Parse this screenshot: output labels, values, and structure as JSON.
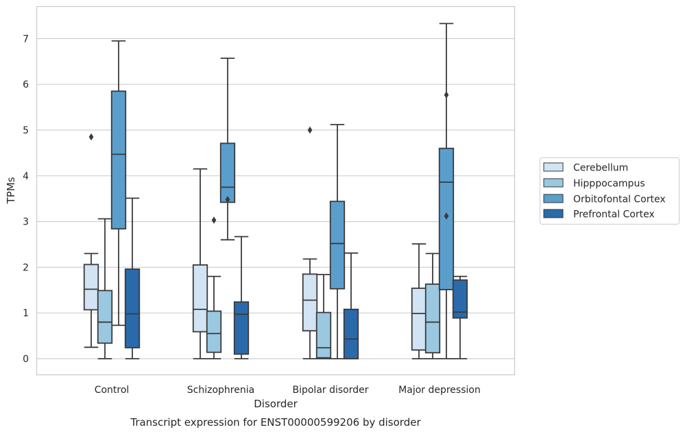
{
  "chart_data": {
    "type": "box",
    "title": "Transcript expression for ENST00000599206 by disorder",
    "xlabel": "Disorder",
    "ylabel": "TPMs",
    "categories": [
      "Control",
      "Schizophrenia",
      "Bipolar disorder",
      "Major depression"
    ],
    "yticks": [
      "0",
      "1",
      "2",
      "3",
      "4",
      "5",
      "6",
      "7"
    ],
    "ylim": [
      -0.35,
      7.7
    ],
    "grid": "horizontal",
    "legend_position": "right",
    "series": [
      {
        "name": "Cerebellum",
        "color": "#d2e3f3",
        "boxes": [
          {
            "min": 0.25,
            "q1": 1.07,
            "median": 1.52,
            "q3": 2.06,
            "max": 2.3,
            "outliers": [
              4.85
            ]
          },
          {
            "min": 0.0,
            "q1": 0.59,
            "median": 1.08,
            "q3": 2.05,
            "max": 4.15,
            "outliers": []
          },
          {
            "min": 0.0,
            "q1": 0.61,
            "median": 1.28,
            "q3": 1.85,
            "max": 2.18,
            "outliers": [
              5.0
            ]
          },
          {
            "min": 0.0,
            "q1": 0.19,
            "median": 0.99,
            "q3": 1.54,
            "max": 2.51,
            "outliers": []
          }
        ]
      },
      {
        "name": "Hipppocampus",
        "color": "#9ac8e0",
        "boxes": [
          {
            "min": 0.0,
            "q1": 0.34,
            "median": 0.8,
            "q3": 1.49,
            "max": 3.06,
            "outliers": []
          },
          {
            "min": 0.0,
            "q1": 0.14,
            "median": 0.55,
            "q3": 1.04,
            "max": 1.8,
            "outliers": [
              3.03
            ]
          },
          {
            "min": 0.0,
            "q1": 0.02,
            "median": 0.24,
            "q3": 1.01,
            "max": 1.84,
            "outliers": []
          },
          {
            "min": 0.0,
            "q1": 0.13,
            "median": 0.8,
            "q3": 1.63,
            "max": 2.3,
            "outliers": []
          }
        ]
      },
      {
        "name": "Orbitofontal Cortex",
        "color": "#5a9ecc",
        "boxes": [
          {
            "min": 0.73,
            "q1": 2.84,
            "median": 4.47,
            "q3": 5.85,
            "max": 6.95,
            "outliers": []
          },
          {
            "min": 2.6,
            "q1": 3.42,
            "median": 3.75,
            "q3": 4.71,
            "max": 6.57,
            "outliers": [
              3.48
            ]
          },
          {
            "min": 0.0,
            "q1": 1.53,
            "median": 2.52,
            "q3": 3.44,
            "max": 5.12,
            "outliers": []
          },
          {
            "min": 0.0,
            "q1": 1.51,
            "median": 3.86,
            "q3": 4.6,
            "max": 7.33,
            "outliers": [
              5.77,
              3.12
            ]
          }
        ]
      },
      {
        "name": "Prefrontal Cortex",
        "color": "#2a6aaa",
        "boxes": [
          {
            "min": 0.0,
            "q1": 0.24,
            "median": 0.98,
            "q3": 1.96,
            "max": 3.51,
            "outliers": []
          },
          {
            "min": 0.0,
            "q1": 0.1,
            "median": 0.97,
            "q3": 1.24,
            "max": 2.67,
            "outliers": []
          },
          {
            "min": 0.0,
            "q1": 0.0,
            "median": 0.43,
            "q3": 1.08,
            "max": 2.31,
            "outliers": []
          },
          {
            "min": 0.0,
            "q1": 0.89,
            "median": 1.02,
            "q3": 1.72,
            "max": 1.8,
            "outliers": []
          }
        ]
      }
    ]
  }
}
